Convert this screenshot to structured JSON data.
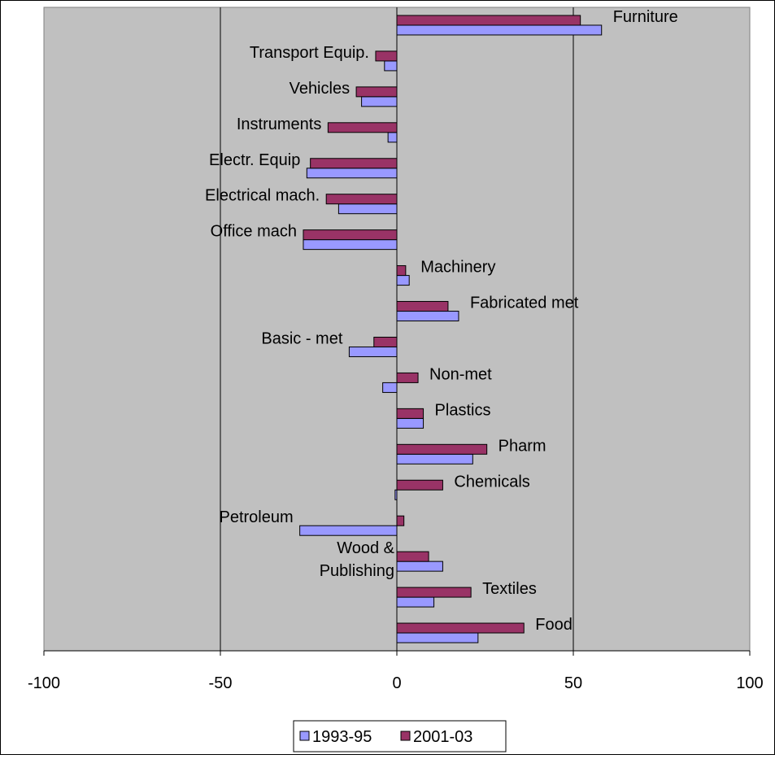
{
  "chart_data": {
    "type": "bar",
    "orientation": "horizontal",
    "categories": [
      "Food",
      "Textiles",
      "Wood &\nPublishing",
      "Petroleum",
      "Chemicals",
      "Pharm",
      "Plastics",
      "Non-met",
      "Basic - met",
      "Fabricated met",
      "Machinery",
      "Office mach",
      "Electrical mach.",
      "Electr. Equip",
      "Instruments",
      "Vehicles",
      "Transport Equip.",
      "Furniture"
    ],
    "series": [
      {
        "name": "1993-95",
        "color": "#9999ff",
        "values": [
          23,
          10.5,
          13,
          -27.5,
          -0.5,
          21.5,
          7.5,
          -4,
          -13.5,
          17.5,
          3.5,
          -26.5,
          -16.5,
          -25.5,
          -2.5,
          -10,
          -3.5,
          58
        ]
      },
      {
        "name": "2001-03",
        "color": "#993366",
        "values": [
          36,
          21,
          9,
          2,
          13,
          25.5,
          7.5,
          6,
          -6.5,
          14.5,
          2.5,
          -26.5,
          -20,
          -24.5,
          -19.5,
          -11.5,
          -6,
          52
        ]
      }
    ],
    "xlim": [
      -100,
      100
    ],
    "xticks": [
      "-100",
      "-50",
      "0",
      "50",
      "100"
    ],
    "vertical_gridlines": true,
    "plot_background": "#c0c0c0",
    "legend_position": "bottom"
  }
}
